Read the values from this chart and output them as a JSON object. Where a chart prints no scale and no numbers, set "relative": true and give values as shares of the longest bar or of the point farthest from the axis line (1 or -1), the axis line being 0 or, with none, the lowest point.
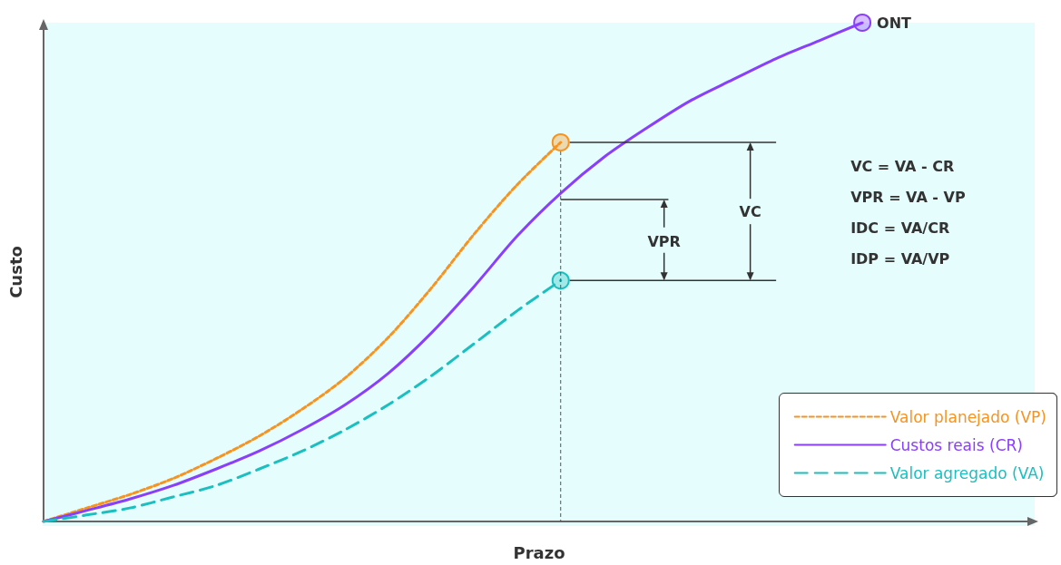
{
  "chart_data": {
    "type": "line",
    "relative": true,
    "xlabel": "Prazo",
    "ylabel": "Custo",
    "legend": "bottom right",
    "categories": [
      null,
      null,
      null,
      null,
      null,
      null,
      null,
      null,
      null,
      null,
      null,
      null,
      null,
      null,
      null,
      null,
      null,
      null,
      null,
      null,
      null,
      null,
      null,
      null
    ],
    "series": [
      {
        "name": "Valor planejado (VP)",
        "color": "#f7931e",
        "line_style": "dotted",
        "values": [
          0,
          0.027,
          0.054,
          0.086,
          0.126,
          0.171,
          0.225,
          0.288,
          0.369,
          0.468,
          0.577,
          0.676,
          0.76,
          null,
          null,
          null,
          null,
          null,
          null,
          null,
          null,
          null,
          null,
          null
        ]
      },
      {
        "name": "Custos reais (CR)",
        "color": "#8a3ffc",
        "line_style": "solid",
        "values": [
          0,
          0.022,
          0.045,
          0.072,
          0.105,
          0.141,
          0.184,
          0.234,
          0.297,
          0.378,
          0.472,
          0.573,
          0.658,
          0.73,
          0.789,
          0.843,
          0.886,
          0.928,
          0.964,
          1,
          null,
          null,
          null,
          null
        ]
      },
      {
        "name": "Valor agregado (VA)",
        "color": "#1bbfbf",
        "line_style": "dashed",
        "values": [
          0,
          0.013,
          0.027,
          0.049,
          0.072,
          0.105,
          0.141,
          0.184,
          0.234,
          0.292,
          0.357,
          0.423,
          0.483,
          null,
          null,
          null,
          null,
          null,
          null,
          null,
          null,
          null,
          null,
          null
        ]
      }
    ],
    "annotations": [
      "ONT",
      "VC",
      "VPR",
      "VC = VA - CR",
      "VPR = VA - VP",
      "IDC = VA/CR",
      "IDP = VA/VP"
    ]
  }
}
